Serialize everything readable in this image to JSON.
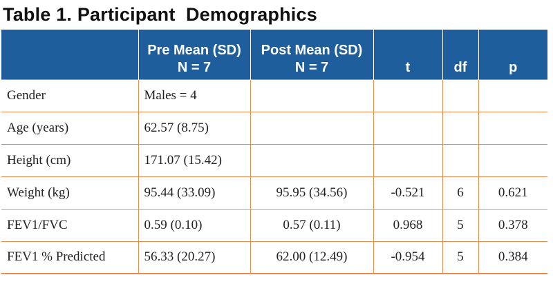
{
  "title": "Table 1. Participant  Demographics",
  "colors": {
    "header_bg": "#1f5e9d",
    "header_text": "#ffffff",
    "grid_lines": "#e98b4b"
  },
  "table": {
    "headers": [
      {
        "line1": "",
        "line2": ""
      },
      {
        "line1": "Pre Mean (SD)",
        "line2": "N = 7"
      },
      {
        "line1": "Post Mean (SD)",
        "line2": "N = 7"
      },
      {
        "line1": "",
        "line2": "t"
      },
      {
        "line1": "",
        "line2": "df"
      },
      {
        "line1": "",
        "line2": "p"
      }
    ],
    "rows": [
      [
        "Gender",
        "Males = 4",
        "",
        "",
        "",
        ""
      ],
      [
        "Age (years)",
        "62.57 (8.75)",
        "",
        "",
        "",
        ""
      ],
      [
        "Height (cm)",
        "171.07 (15.42)",
        "",
        "",
        "",
        ""
      ],
      [
        "Weight (kg)",
        "95.44 (33.09)",
        "95.95 (34.56)",
        "-0.521",
        "6",
        "0.621"
      ],
      [
        "FEV1/FVC",
        "0.59 (0.10)",
        "0.57 (0.11)",
        "0.968",
        "5",
        "0.378"
      ],
      [
        "FEV1 % Predicted",
        "56.33 (20.27)",
        "62.00 (12.49)",
        "-0.954",
        "5",
        "0.384"
      ]
    ]
  }
}
